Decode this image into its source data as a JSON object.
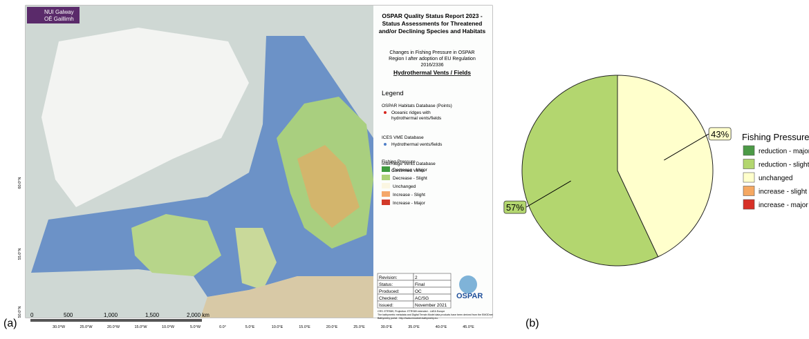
{
  "panel_labels": [
    "(a)",
    "(b)"
  ],
  "map": {
    "logo": [
      "NUI Galway",
      "OÉ Gaillimh"
    ],
    "title_lines": [
      "OSPAR Quality Status Report 2023 -",
      "Status Assessments for Threatened",
      "and/or Declining Species and Habitats"
    ],
    "subtitle": "Hydrothermal Vents / Fields",
    "description_lines": [
      "Changes in Fishing Pressure in OSPAR",
      "Region I after adoption of EU Regulation",
      "2016/2336"
    ],
    "legend_title": "Legend",
    "legend_groups": [
      {
        "heading": "OSPAR Habitats Database (Points)",
        "items": [
          "Oceanic ridges with",
          "hydrothermal vents/fields"
        ],
        "color": "#d7261e"
      },
      {
        "heading": "ICES VME Database",
        "items": [
          "Hydrothermal vents/fields"
        ],
        "color": "#4f7fc8"
      },
      {
        "heading": "InterRidge Vents Database",
        "items": [
          "Confirmed Vents"
        ],
        "color": "#c44fd0"
      }
    ],
    "pressure_heading": "Fishing Pressure",
    "pressure_items": [
      {
        "name": "Decrease - Major",
        "color": "#3f9b3f"
      },
      {
        "name": "Decrease - Slight",
        "color": "#aed37a"
      },
      {
        "name": "Unchanged",
        "color": "#fbf6e2"
      },
      {
        "name": "Increase - Slight",
        "color": "#f4a86a"
      },
      {
        "name": "Increase - Major",
        "color": "#d23a2a"
      }
    ],
    "revision_table": [
      [
        "Revision:",
        "2"
      ],
      [
        "Status:",
        "Final"
      ],
      [
        "Produced:",
        "OC"
      ],
      [
        "Checked:",
        "AC/SG"
      ],
      [
        "Issued:",
        "November 2021"
      ]
    ],
    "ospar_logo": "OSPAR",
    "footer_lines": [
      "CRS: ETRS89, Projection: ETRS89 extended - LAEA Europe",
      "The bathymetric metadata and Digital Terrain Model data products have been derived from the EMODnet",
      "Bathymetry portal - http://www.emodnet-bathymetry.eu."
    ],
    "scale_labels": [
      "0",
      "500",
      "1,000",
      "1,500",
      "2,000 km"
    ],
    "lon_labels": [
      "30.0°W",
      "25.0°W",
      "20.0°W",
      "15.0°W",
      "10.0°W",
      "5.0°W",
      "0.0°",
      "5.0°E",
      "10.0°E",
      "15.0°E",
      "20.0°E",
      "25.0°E",
      "30.0°E",
      "35.0°E",
      "40.0°E",
      "45.0°E"
    ],
    "lat_labels": [
      "60.0°N",
      "55.0°N",
      "50.0°N"
    ]
  },
  "chart_data": {
    "type": "pie",
    "legend_title": "Fishing Pressure",
    "categories": [
      "reduction - major",
      "reduction - slight",
      "unchanged",
      "increase - slight",
      "increase - major"
    ],
    "colors": [
      "#4c9a46",
      "#b3d66f",
      "#ffffcc",
      "#f5a862",
      "#d73027"
    ],
    "values": [
      0,
      57,
      43,
      0,
      0
    ],
    "value_labels": [
      null,
      "57%",
      "43%",
      null,
      null
    ],
    "start_angle": 90,
    "legend": "right"
  }
}
